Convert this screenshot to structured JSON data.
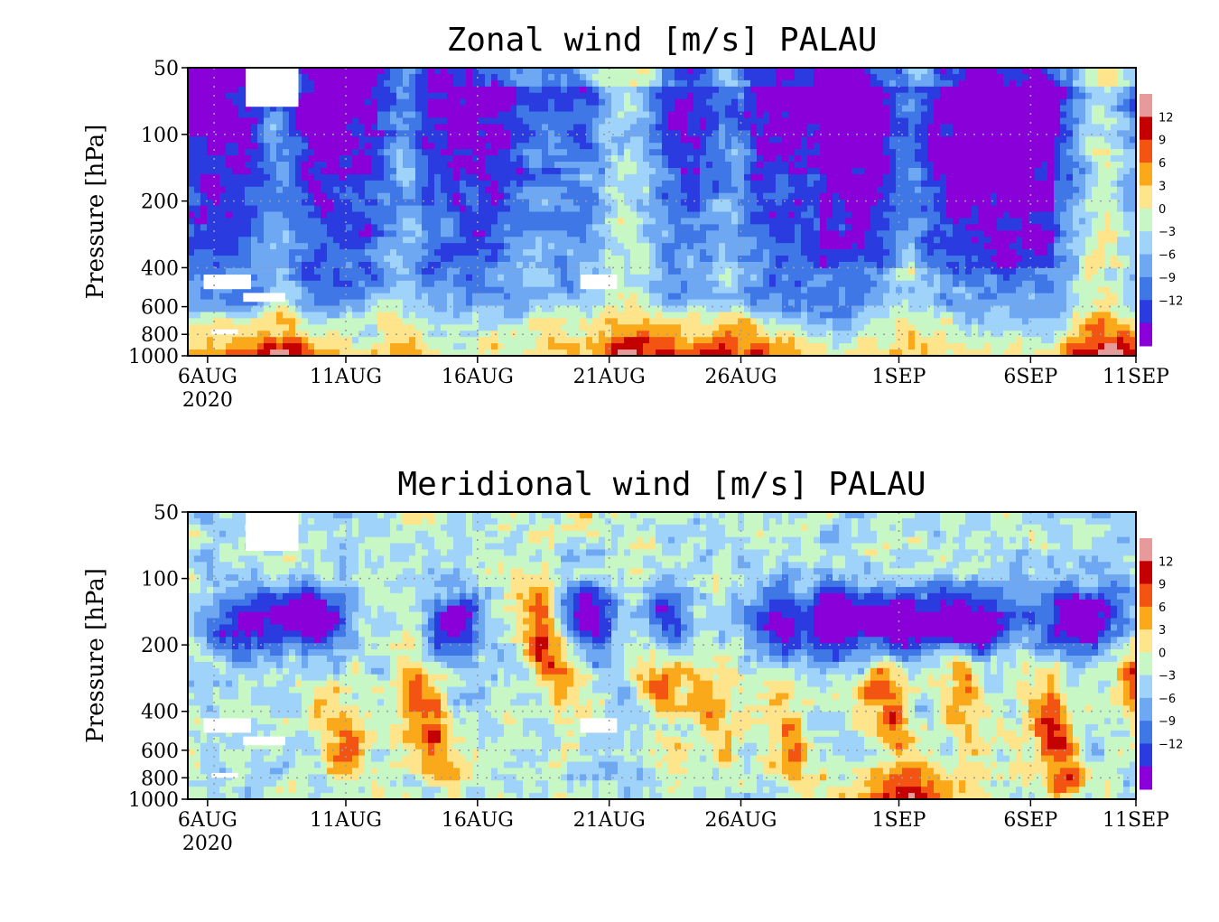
{
  "levels": [
    -15,
    -12,
    -9,
    -6,
    -3,
    0,
    3,
    6,
    9,
    12,
    15
  ],
  "palette": [
    "#8a00d8",
    "#2a3ce0",
    "#3f78e6",
    "#6ea7f2",
    "#9fd3fa",
    "#c8f7c6",
    "#fee58b",
    "#f9a91a",
    "#f35412",
    "#c40000",
    "#e79a9a"
  ],
  "chart_data": [
    {
      "type": "heatmap",
      "title": "Zonal wind [m/s] PALAU",
      "ylabel": "Pressure [hPa]",
      "xlabel": "",
      "x_range": [
        "2020-08-06",
        "2020-09-11"
      ],
      "xticks": [
        {
          "date": "2020-08-06",
          "label": "6AUG",
          "sub": "2020"
        },
        {
          "date": "2020-08-11",
          "label": "11AUG"
        },
        {
          "date": "2020-08-16",
          "label": "16AUG"
        },
        {
          "date": "2020-08-21",
          "label": "21AUG"
        },
        {
          "date": "2020-08-26",
          "label": "26AUG"
        },
        {
          "date": "2020-09-01",
          "label": "1SEP"
        },
        {
          "date": "2020-09-06",
          "label": "6SEP"
        },
        {
          "date": "2020-09-11",
          "label": "11SEP"
        }
      ],
      "y_scale": "log",
      "ylim_hpa": [
        1000,
        50
      ],
      "yticks": [
        50,
        100,
        200,
        400,
        600,
        800,
        1000
      ],
      "colorbar_labels": [
        "12",
        "9",
        "6",
        "3",
        "0",
        "−3",
        "−6",
        "−9",
        "−12"
      ],
      "grid": true,
      "units": "m/s"
    },
    {
      "type": "heatmap",
      "title": "Meridional wind [m/s] PALAU",
      "ylabel": "Pressure [hPa]",
      "xlabel": "",
      "x_range": [
        "2020-08-06",
        "2020-09-11"
      ],
      "xticks": [
        {
          "date": "2020-08-06",
          "label": "6AUG",
          "sub": "2020"
        },
        {
          "date": "2020-08-11",
          "label": "11AUG"
        },
        {
          "date": "2020-08-16",
          "label": "16AUG"
        },
        {
          "date": "2020-08-21",
          "label": "21AUG"
        },
        {
          "date": "2020-08-26",
          "label": "26AUG"
        },
        {
          "date": "2020-09-01",
          "label": "1SEP"
        },
        {
          "date": "2020-09-06",
          "label": "6SEP"
        },
        {
          "date": "2020-09-11",
          "label": "11SEP"
        }
      ],
      "y_scale": "log",
      "ylim_hpa": [
        1000,
        50
      ],
      "yticks": [
        50,
        100,
        200,
        400,
        600,
        800,
        1000
      ],
      "colorbar_labels": [
        "12",
        "9",
        "6",
        "3",
        "0",
        "−3",
        "−6",
        "−9",
        "−12"
      ],
      "grid": true,
      "units": "m/s"
    }
  ]
}
